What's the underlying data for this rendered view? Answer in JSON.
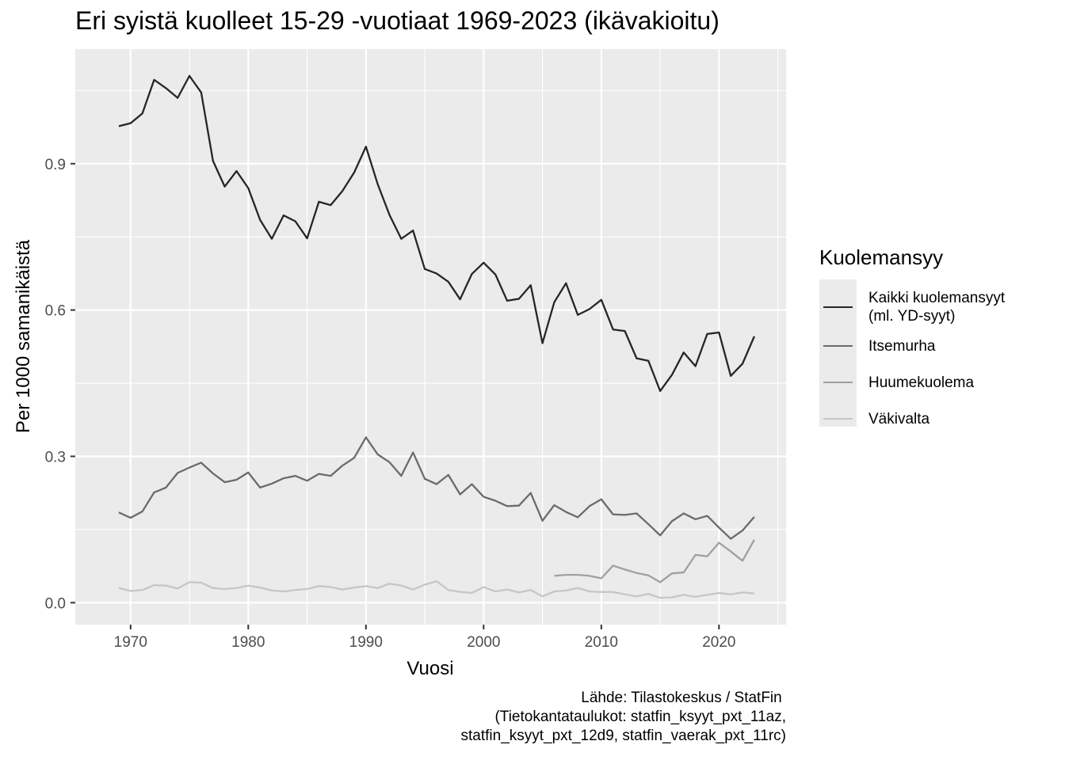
{
  "chart_data": {
    "type": "line",
    "title": "Eri syistä kuolleet 15-29 -vuotiaat 1969-2023 (ikävakioitu)",
    "xlabel": "Vuosi",
    "ylabel": "Per 1000 samanikäistä",
    "xlim": [
      1965.3,
      2025.7
    ],
    "ylim": [
      -0.045,
      1.135
    ],
    "x_ticks": [
      1970,
      1980,
      1990,
      2000,
      2010,
      2020
    ],
    "x_tick_labels": [
      "1970",
      "1980",
      "1990",
      "2000",
      "2010",
      "2020"
    ],
    "y_ticks": [
      0.0,
      0.3,
      0.6,
      0.9
    ],
    "y_tick_labels": [
      "0.0",
      "0.3",
      "0.6",
      "0.9"
    ],
    "grid": true,
    "legend_position": "right",
    "legend_title": "Kuolemansyy",
    "caption": [
      "Lähde: Tilastokeskus / StatFin ",
      "(Tietokantataulukot: statfin_ksyyt_pxt_11az,",
      "statfin_ksyyt_pxt_12d9, statfin_vaerak_pxt_11rc)"
    ],
    "series": [
      {
        "name": "Kaikki kuolemansyyt (ml. YD-syyt)",
        "label_lines": [
          "Kaikki kuolemansyyt",
          "(ml. YD-syyt)"
        ],
        "color": "#262626",
        "x": [
          1969,
          1970,
          1971,
          1972,
          1973,
          1974,
          1975,
          1976,
          1977,
          1978,
          1979,
          1980,
          1981,
          1982,
          1983,
          1984,
          1985,
          1986,
          1987,
          1988,
          1989,
          1990,
          1991,
          1992,
          1993,
          1994,
          1995,
          1996,
          1997,
          1998,
          1999,
          2000,
          2001,
          2002,
          2003,
          2004,
          2005,
          2006,
          2007,
          2008,
          2009,
          2010,
          2011,
          2012,
          2013,
          2014,
          2015,
          2016,
          2017,
          2018,
          2019,
          2020,
          2021,
          2022,
          2023
        ],
        "values": [
          0.977,
          0.983,
          1.003,
          1.072,
          1.055,
          1.035,
          1.08,
          1.046,
          0.906,
          0.853,
          0.885,
          0.85,
          0.785,
          0.746,
          0.794,
          0.782,
          0.747,
          0.822,
          0.815,
          0.844,
          0.882,
          0.935,
          0.858,
          0.795,
          0.746,
          0.763,
          0.684,
          0.675,
          0.658,
          0.622,
          0.674,
          0.697,
          0.673,
          0.619,
          0.623,
          0.651,
          0.532,
          0.616,
          0.655,
          0.59,
          0.602,
          0.621,
          0.56,
          0.557,
          0.501,
          0.496,
          0.434,
          0.467,
          0.513,
          0.485,
          0.551,
          0.554,
          0.465,
          0.49,
          0.546
        ]
      },
      {
        "name": "Itsemurha",
        "label_lines": [
          "Itsemurha"
        ],
        "color": "#6b6b6b",
        "x": [
          1969,
          1970,
          1971,
          1972,
          1973,
          1974,
          1975,
          1976,
          1977,
          1978,
          1979,
          1980,
          1981,
          1982,
          1983,
          1984,
          1985,
          1986,
          1987,
          1988,
          1989,
          1990,
          1991,
          1992,
          1993,
          1994,
          1995,
          1996,
          1997,
          1998,
          1999,
          2000,
          2001,
          2002,
          2003,
          2004,
          2005,
          2006,
          2007,
          2008,
          2009,
          2010,
          2011,
          2012,
          2013,
          2014,
          2015,
          2016,
          2017,
          2018,
          2019,
          2020,
          2021,
          2022,
          2023
        ],
        "values": [
          0.185,
          0.174,
          0.187,
          0.226,
          0.236,
          0.266,
          0.277,
          0.287,
          0.265,
          0.247,
          0.252,
          0.267,
          0.236,
          0.244,
          0.255,
          0.26,
          0.25,
          0.264,
          0.26,
          0.281,
          0.297,
          0.339,
          0.304,
          0.288,
          0.26,
          0.308,
          0.254,
          0.243,
          0.262,
          0.222,
          0.243,
          0.217,
          0.209,
          0.198,
          0.199,
          0.225,
          0.168,
          0.2,
          0.186,
          0.175,
          0.198,
          0.212,
          0.181,
          0.18,
          0.183,
          0.161,
          0.138,
          0.167,
          0.183,
          0.171,
          0.178,
          0.154,
          0.131,
          0.148,
          0.176
        ]
      },
      {
        "name": "Huumekuolema",
        "label_lines": [
          "Huumekuolema"
        ],
        "color": "#a0a0a0",
        "x": [
          2006,
          2007,
          2008,
          2009,
          2010,
          2011,
          2012,
          2013,
          2014,
          2015,
          2016,
          2017,
          2018,
          2019,
          2020,
          2021,
          2022,
          2023
        ],
        "values": [
          0.055,
          0.057,
          0.057,
          0.055,
          0.05,
          0.076,
          0.068,
          0.061,
          0.056,
          0.042,
          0.06,
          0.062,
          0.098,
          0.095,
          0.123,
          0.105,
          0.086,
          0.129
        ]
      },
      {
        "name": "Väkivalta",
        "label_lines": [
          "Väkivalta"
        ],
        "color": "#c6c6c6",
        "x": [
          1969,
          1970,
          1971,
          1972,
          1973,
          1974,
          1975,
          1976,
          1977,
          1978,
          1979,
          1980,
          1981,
          1982,
          1983,
          1984,
          1985,
          1986,
          1987,
          1988,
          1989,
          1990,
          1991,
          1992,
          1993,
          1994,
          1995,
          1996,
          1997,
          1998,
          1999,
          2000,
          2001,
          2002,
          2003,
          2004,
          2005,
          2006,
          2007,
          2008,
          2009,
          2010,
          2011,
          2012,
          2013,
          2014,
          2015,
          2016,
          2017,
          2018,
          2019,
          2020,
          2021,
          2022,
          2023
        ],
        "values": [
          0.03,
          0.024,
          0.026,
          0.036,
          0.035,
          0.029,
          0.042,
          0.041,
          0.03,
          0.028,
          0.03,
          0.035,
          0.031,
          0.025,
          0.023,
          0.026,
          0.028,
          0.034,
          0.032,
          0.027,
          0.031,
          0.034,
          0.03,
          0.039,
          0.035,
          0.027,
          0.037,
          0.044,
          0.026,
          0.022,
          0.02,
          0.032,
          0.023,
          0.027,
          0.021,
          0.026,
          0.013,
          0.023,
          0.025,
          0.03,
          0.023,
          0.022,
          0.022,
          0.017,
          0.013,
          0.018,
          0.01,
          0.011,
          0.016,
          0.012,
          0.016,
          0.02,
          0.017,
          0.021,
          0.019
        ]
      }
    ]
  }
}
